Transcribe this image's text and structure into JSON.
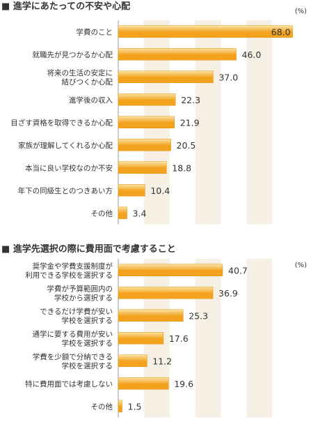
{
  "colors": {
    "bar_light": "#FBE3A6",
    "bar_dark": "#F2A21D",
    "bar_edge": "#E59410",
    "stripe": "#F5F0E3",
    "axis": "#999999",
    "text": "#333333"
  },
  "chart_data": [
    {
      "type": "bar",
      "orientation": "horizontal",
      "title": "■ 進学にあたっての不安や心配",
      "unit": "(%)",
      "categories": [
        [
          "学費のこと"
        ],
        [
          "就職先が見つかるか心配"
        ],
        [
          "将来の生活の安定に",
          "結びつくか心配"
        ],
        [
          "進学後の収入"
        ],
        [
          "目ざす資格を取得できるか心配"
        ],
        [
          "家族が理解してくれるか心配"
        ],
        [
          "本当に良い学校なのか不安"
        ],
        [
          "年下の同級生とのつきあい方"
        ],
        [
          "その他"
        ]
      ],
      "values": [
        68.0,
        46.0,
        37.0,
        22.3,
        21.9,
        20.5,
        18.8,
        10.4,
        3.4
      ],
      "value_labels": [
        "68.0",
        "46.0",
        "37.0",
        "22.3",
        "21.9",
        "20.5",
        "18.8",
        "10.4",
        "3.4"
      ],
      "xlim": [
        0,
        70
      ],
      "grid": "alternating column stripes"
    },
    {
      "type": "bar",
      "orientation": "horizontal",
      "title": "■ 進学先選択の際に費用面で考慮すること",
      "unit": "(%)",
      "categories": [
        [
          "奨学金や学費支援制度が",
          "利用できる学校を選択する"
        ],
        [
          "学費が予算範囲内の",
          "学校から選択する"
        ],
        [
          "できるだけ学費が安い",
          "学校を選択する"
        ],
        [
          "通学に要する費用が安い",
          "学校を選択する"
        ],
        [
          "学費を少額で分納できる",
          "学校を選択する"
        ],
        [
          "特に費用面では考慮しない"
        ],
        [
          "その他"
        ]
      ],
      "values": [
        40.7,
        36.9,
        25.3,
        17.6,
        11.2,
        19.6,
        1.5
      ],
      "value_labels": [
        "40.7",
        "36.9",
        "25.3",
        "17.6",
        "11.2",
        "19.6",
        "1.5"
      ],
      "xlim": [
        0,
        70
      ],
      "grid": "alternating column stripes"
    }
  ]
}
